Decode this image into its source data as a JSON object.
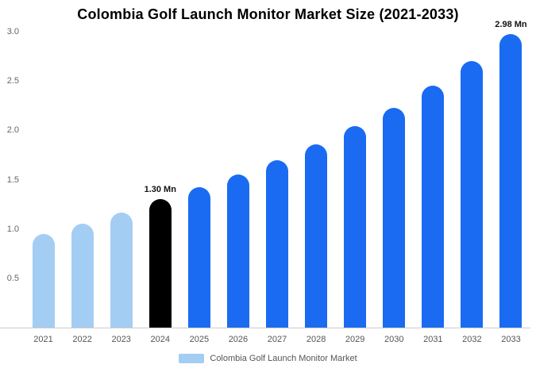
{
  "chart_data": {
    "type": "bar",
    "title": "Colombia Golf Launch Monitor Market Size (2021-2033)",
    "categories": [
      "2021",
      "2022",
      "2023",
      "2024",
      "2025",
      "2026",
      "2027",
      "2028",
      "2029",
      "2030",
      "2031",
      "2032",
      "2033"
    ],
    "values": [
      0.95,
      1.05,
      1.17,
      1.3,
      1.42,
      1.55,
      1.7,
      1.86,
      2.04,
      2.23,
      2.45,
      2.7,
      2.98
    ],
    "unit": "Mn",
    "xlabel": "",
    "ylabel": "",
    "ylim": [
      0,
      3.0
    ],
    "yticks": [
      0.5,
      1.0,
      1.5,
      2.0,
      2.5,
      3.0
    ],
    "grid": false,
    "legend_position": "bottom",
    "legend_label": "Colombia Golf Launch Monitor Market",
    "annotations": [
      {
        "category": "2024",
        "text": "1.30 Mn"
      },
      {
        "category": "2033",
        "text": "2.98 Mn"
      }
    ],
    "colors": {
      "default_bar": "#1a6bf2",
      "past_bar": "#a4cdf4",
      "highlight_bar": "#000000",
      "past_years": [
        "2021",
        "2022",
        "2023"
      ],
      "highlight_year": "2024",
      "axis_line": "#cccccc",
      "tick_text": "#666666",
      "xlabel_text": "#555555",
      "annotation_text": "#111111"
    }
  }
}
